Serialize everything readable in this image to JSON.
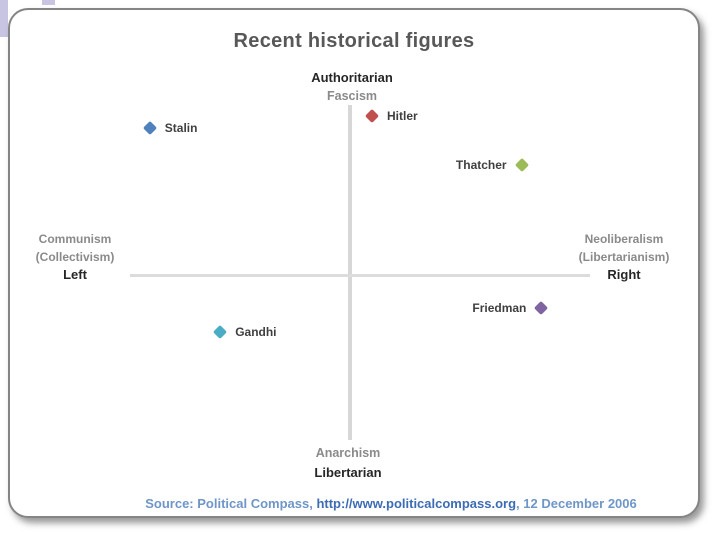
{
  "title": "Recent historical figures",
  "axis_labels": {
    "top_primary": "Authoritarian",
    "top_secondary": "Fascism",
    "bottom_secondary": "Anarchism",
    "bottom_primary": "Libertarian",
    "left_line1": "Communism",
    "left_line2": "(Collectivism)",
    "left_line3": "Left",
    "right_line1": "Neoliberalism",
    "right_line2": "(Libertarianism)",
    "right_line3": "Right"
  },
  "source": {
    "prefix": "Source: Political Compass, ",
    "url": "http://www.politicalcompass.org",
    "suffix": ", 12 December 2006"
  },
  "colors": {
    "accent_lavender": "#c8c5e2",
    "axis_line": "#d7d7d7",
    "title_text": "#585858",
    "muted_label": "#8a8a8a",
    "dark_label": "#262626",
    "point_label": "#3f3f3f",
    "source_text": "#6e96c8",
    "source_url_text": "#3c6cb4"
  },
  "chart_data": {
    "type": "scatter",
    "title": "Recent historical figures",
    "xlim": [
      -10,
      10
    ],
    "ylim": [
      -10,
      10
    ],
    "grid": false,
    "x_axis": {
      "negative_end": "Left (Communism / Collectivism)",
      "positive_end": "Right (Neoliberalism / Libertarianism)"
    },
    "y_axis": {
      "positive_end": "Authoritarian (Fascism)",
      "negative_end": "Libertarian (Anarchism)"
    },
    "points": [
      {
        "name": "Stalin",
        "x": -9.1,
        "y": 8.8,
        "color": "#4f81bd",
        "label_side": "right"
      },
      {
        "name": "Hitler",
        "x": 1.0,
        "y": 9.5,
        "color": "#c0504d",
        "label_side": "right"
      },
      {
        "name": "Thatcher",
        "x": 7.8,
        "y": 6.6,
        "color": "#9bbb59",
        "label_side": "left"
      },
      {
        "name": "Friedman",
        "x": 8.7,
        "y": -2.0,
        "color": "#8064a2",
        "label_side": "left"
      },
      {
        "name": "Gandhi",
        "x": -5.9,
        "y": -3.4,
        "color": "#4bacc6",
        "label_side": "right"
      }
    ]
  }
}
